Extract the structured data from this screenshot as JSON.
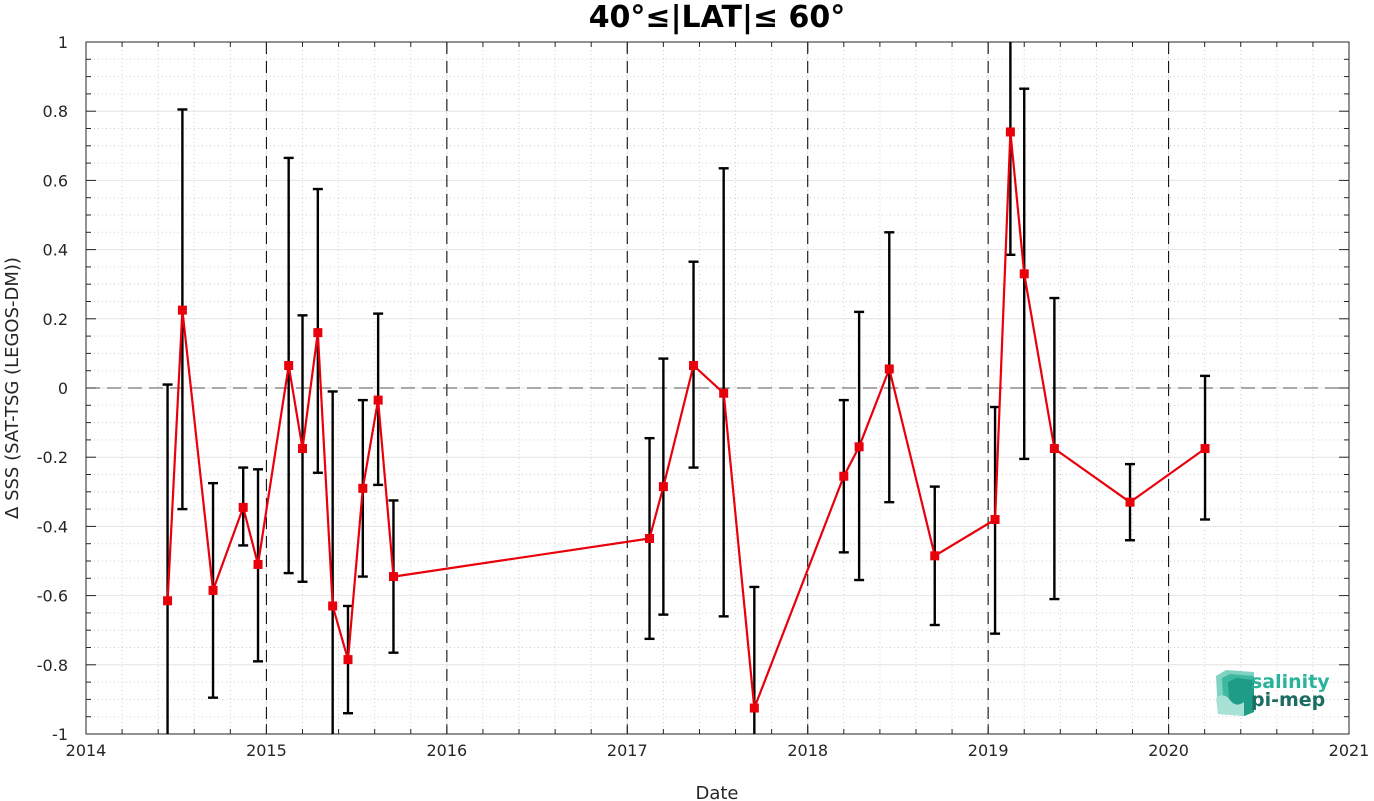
{
  "chart_data": {
    "type": "line",
    "title": "40°≤|LAT|≤ 60°",
    "xlabel": "Date",
    "ylabel": "Δ SSS (SAT-TSG (LEGOS-DM))",
    "xlim": [
      "2014-01-01",
      "2021-01-01"
    ],
    "ylim": [
      -1,
      1
    ],
    "x_ticks": [
      "2014",
      "2015",
      "2016",
      "2017",
      "2018",
      "2019",
      "2020",
      "2021"
    ],
    "y_ticks": [
      "-1",
      "-0.8",
      "-0.6",
      "-0.4",
      "-0.2",
      "0",
      "0.2",
      "0.4",
      "0.6",
      "0.8",
      "1"
    ],
    "grid": true,
    "reference_line_y": 0,
    "vertical_dashed_lines": [
      "2015-01-01",
      "2016-01-01",
      "2017-01-01",
      "2018-01-01",
      "2019-01-01",
      "2020-01-01"
    ],
    "line_color": "#e8000b",
    "errorbar_color": "#000000",
    "series": [
      {
        "dates": [
          "2014-06-15",
          "2014-07-15",
          "2014-09-15",
          "2014-11-15",
          "2014-12-15",
          "2015-02-15",
          "2015-03-15",
          "2015-04-15",
          "2015-05-15",
          "2015-06-15",
          "2015-07-15",
          "2015-08-15",
          "2015-09-15",
          "2017-02-15",
          "2017-03-15",
          "2017-05-15",
          "2017-07-15",
          "2017-09-15",
          "2018-03-15",
          "2018-04-15",
          "2018-06-15",
          "2018-09-15",
          "2019-01-15",
          "2019-02-15",
          "2019-03-15",
          "2019-05-15",
          "2019-10-15",
          "2020-03-15"
        ],
        "values": [
          -0.615,
          0.225,
          -0.585,
          -0.345,
          -0.51,
          0.065,
          -0.175,
          0.16,
          -0.63,
          -0.785,
          -0.29,
          -0.035,
          -0.545,
          -0.435,
          -0.285,
          0.065,
          -0.015,
          -0.925,
          -0.255,
          -0.17,
          0.055,
          -0.485,
          -0.38,
          0.74,
          0.33,
          -0.175,
          -0.33,
          -0.175
        ],
        "lower": [
          -1.0,
          -0.35,
          -0.895,
          -0.455,
          -0.79,
          -0.535,
          -0.56,
          -0.245,
          -1.0,
          -0.94,
          -0.545,
          -0.28,
          -0.765,
          -0.725,
          -0.655,
          -0.23,
          -0.66,
          -1.0,
          -0.475,
          -0.555,
          -0.33,
          -0.685,
          -0.71,
          0.385,
          -0.205,
          -0.61,
          -0.44,
          -0.38
        ],
        "upper": [
          0.01,
          0.805,
          -0.275,
          -0.23,
          -0.235,
          0.665,
          0.21,
          0.575,
          -0.01,
          -0.63,
          -0.035,
          0.215,
          -0.325,
          -0.145,
          0.085,
          0.365,
          0.635,
          -0.575,
          -0.035,
          0.22,
          0.45,
          -0.285,
          -0.055,
          1.0,
          0.865,
          0.26,
          -0.22,
          0.035
        ]
      }
    ]
  },
  "logo": {
    "line1": "salinity",
    "line2": "pi-mep",
    "color1": "#2ab39a",
    "color2": "#1b6d62"
  }
}
